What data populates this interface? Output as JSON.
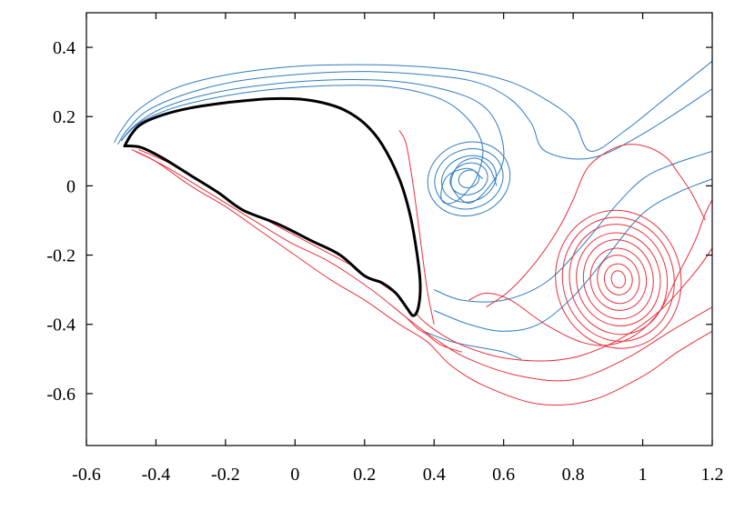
{
  "chart_data": {
    "type": "line",
    "title": "",
    "xlabel": "",
    "ylabel": "",
    "xlim": [
      -0.6,
      1.2
    ],
    "ylim": [
      -0.75,
      0.5
    ],
    "x_ticks": [
      "-0.6",
      "-0.4",
      "-0.2",
      "0",
      "0.2",
      "0.4",
      "0.6",
      "0.8",
      "1",
      "1.2"
    ],
    "y_ticks": [
      "0.4",
      "0.2",
      "0",
      "-0.2",
      "-0.4",
      "-0.6"
    ],
    "x_tick_values": [
      -0.6,
      -0.4,
      -0.2,
      0,
      0.2,
      0.4,
      0.6,
      0.8,
      1.0,
      1.2
    ],
    "y_tick_values": [
      0.4,
      0.2,
      0,
      -0.2,
      -0.4,
      -0.6
    ],
    "grid": false,
    "legend": "none",
    "colors": {
      "body": "#000000",
      "negative_vorticity": "#2f7bbf",
      "positive_vorticity": "#e8303a"
    },
    "series": [
      {
        "role": "body",
        "color": "#000000",
        "x": [
          -0.49,
          -0.47,
          -0.44,
          -0.38,
          -0.3,
          -0.2,
          -0.1,
          -0.04,
          0.02,
          0.08,
          0.14,
          0.2,
          0.25,
          0.3,
          0.33,
          0.35,
          0.36,
          0.355,
          0.34,
          0.32,
          0.29,
          0.25,
          0.2,
          0.13,
          0.05,
          -0.05,
          -0.15,
          -0.22,
          -0.3,
          -0.38,
          -0.44,
          -0.47,
          -0.49
        ],
        "y": [
          0.115,
          0.15,
          0.18,
          0.205,
          0.225,
          0.24,
          0.25,
          0.252,
          0.25,
          0.24,
          0.22,
          0.18,
          0.12,
          0.02,
          -0.08,
          -0.19,
          -0.28,
          -0.35,
          -0.375,
          -0.35,
          -0.31,
          -0.28,
          -0.26,
          -0.2,
          -0.16,
          -0.11,
          -0.07,
          -0.02,
          0.03,
          0.08,
          0.11,
          0.115,
          0.115
        ]
      }
    ],
    "contours_negative": [
      {
        "x": [
          -0.52,
          -0.5,
          -0.45,
          -0.35,
          -0.2,
          0.0,
          0.2,
          0.35,
          0.5,
          0.62,
          0.72,
          0.8,
          0.85,
          0.95,
          1.05,
          1.2
        ],
        "y": [
          0.125,
          0.16,
          0.22,
          0.28,
          0.32,
          0.345,
          0.35,
          0.345,
          0.33,
          0.3,
          0.25,
          0.19,
          0.1,
          0.16,
          0.24,
          0.36
        ]
      },
      {
        "x": [
          -0.51,
          -0.48,
          -0.42,
          -0.3,
          -0.15,
          0.05,
          0.22,
          0.38,
          0.52,
          0.62,
          0.68,
          0.72,
          0.85,
          1.0,
          1.2
        ],
        "y": [
          0.12,
          0.165,
          0.22,
          0.27,
          0.305,
          0.325,
          0.33,
          0.32,
          0.3,
          0.25,
          0.18,
          0.1,
          0.08,
          0.15,
          0.28
        ]
      },
      {
        "x": [
          -0.5,
          -0.46,
          -0.38,
          -0.25,
          -0.1,
          0.08,
          0.25,
          0.4,
          0.52,
          0.58,
          0.6,
          0.56,
          0.5,
          0.45,
          0.47,
          0.52,
          0.56,
          0.58
        ],
        "y": [
          0.13,
          0.175,
          0.225,
          0.265,
          0.29,
          0.305,
          0.305,
          0.285,
          0.245,
          0.18,
          0.08,
          0.0,
          -0.05,
          0.0,
          0.06,
          0.08,
          0.05,
          0.0
        ]
      },
      {
        "x": [
          -0.5,
          -0.45,
          -0.35,
          -0.2,
          -0.05,
          0.12,
          0.28,
          0.42,
          0.5,
          0.54,
          0.52,
          0.47,
          0.43,
          0.42,
          0.44,
          0.5,
          0.54
        ],
        "y": [
          0.13,
          0.18,
          0.225,
          0.26,
          0.28,
          0.29,
          0.285,
          0.25,
          0.19,
          0.11,
          0.02,
          -0.04,
          -0.05,
          -0.02,
          0.03,
          0.05,
          0.02
        ]
      },
      {
        "x": [
          0.4,
          0.48,
          0.6,
          0.72,
          0.82,
          0.92,
          1.0,
          1.08,
          1.2
        ],
        "y": [
          -0.3,
          -0.33,
          -0.33,
          -0.28,
          -0.18,
          -0.06,
          0.02,
          0.06,
          0.1
        ]
      },
      {
        "x": [
          0.4,
          0.5,
          0.6,
          0.7,
          0.8,
          0.9,
          1.0,
          1.1,
          1.2
        ],
        "y": [
          -0.36,
          -0.4,
          -0.42,
          -0.4,
          -0.32,
          -0.2,
          -0.08,
          -0.02,
          0.02
        ]
      },
      {
        "x": [
          0.37,
          0.45,
          0.55,
          0.6,
          0.65
        ],
        "y": [
          -0.42,
          -0.45,
          -0.47,
          -0.48,
          -0.5
        ]
      }
    ],
    "contours_positive": [
      {
        "x": [
          -0.47,
          -0.4,
          -0.3,
          -0.2,
          -0.1,
          0.0,
          0.1,
          0.2,
          0.3,
          0.38,
          0.45,
          0.55,
          0.7,
          0.85,
          1.0,
          1.1,
          1.2
        ],
        "y": [
          0.105,
          0.07,
          0.0,
          -0.06,
          -0.13,
          -0.2,
          -0.27,
          -0.33,
          -0.4,
          -0.45,
          -0.52,
          -0.58,
          -0.63,
          -0.62,
          -0.55,
          -0.48,
          -0.42
        ]
      },
      {
        "x": [
          -0.46,
          -0.38,
          -0.28,
          -0.15,
          -0.02,
          0.1,
          0.22,
          0.32,
          0.4,
          0.5,
          0.65,
          0.8,
          0.95,
          1.08,
          1.2
        ],
        "y": [
          0.1,
          0.06,
          0.0,
          -0.08,
          -0.16,
          -0.22,
          -0.3,
          -0.38,
          -0.44,
          -0.5,
          -0.55,
          -0.56,
          -0.5,
          -0.42,
          -0.35
        ]
      },
      {
        "x": [
          -0.45,
          -0.35,
          -0.22,
          -0.08,
          0.05,
          0.18,
          0.3,
          0.38,
          0.48,
          0.62,
          0.78,
          0.92,
          1.05,
          1.15,
          1.2
        ],
        "y": [
          0.105,
          0.06,
          -0.02,
          -0.1,
          -0.17,
          -0.24,
          -0.32,
          -0.4,
          -0.46,
          -0.5,
          -0.5,
          -0.45,
          -0.36,
          -0.25,
          -0.18
        ]
      },
      {
        "x": [
          0.5,
          0.55,
          0.62,
          0.72,
          0.82,
          0.9,
          0.98,
          1.05,
          1.1,
          1.15,
          1.18,
          1.2
        ],
        "y": [
          -0.33,
          -0.31,
          -0.33,
          -0.4,
          -0.45,
          -0.46,
          -0.43,
          -0.36,
          -0.26,
          -0.16,
          -0.08,
          -0.04
        ]
      },
      {
        "x": [
          0.55,
          0.62,
          0.7,
          0.76,
          0.8,
          0.84,
          0.9,
          0.96,
          1.02,
          1.07,
          1.1,
          1.14,
          1.18
        ],
        "y": [
          -0.35,
          -0.3,
          -0.21,
          -0.12,
          -0.04,
          0.05,
          0.1,
          0.12,
          0.11,
          0.08,
          0.04,
          -0.02,
          -0.1
        ]
      },
      {
        "x": [
          0.3,
          0.32,
          0.34,
          0.36,
          0.38,
          0.4
        ],
        "y": [
          0.16,
          0.12,
          0.0,
          -0.15,
          -0.3,
          -0.4
        ]
      },
      {
        "x": [
          0.32,
          0.35,
          0.38,
          0.42,
          0.48
        ],
        "y": [
          -0.38,
          -0.41,
          -0.43,
          -0.46,
          -0.48
        ]
      }
    ],
    "vortex_centers": [
      {
        "role": "negative",
        "x": 0.5,
        "y": 0.02,
        "rx": [
          0.03,
          0.055,
          0.08,
          0.1,
          0.12
        ],
        "ry": [
          0.025,
          0.045,
          0.065,
          0.085,
          0.105
        ]
      },
      {
        "role": "positive",
        "x": 0.93,
        "y": -0.27,
        "rx": [
          0.02,
          0.04,
          0.06,
          0.08,
          0.1,
          0.12,
          0.14,
          0.16,
          0.18
        ],
        "ry": [
          0.025,
          0.045,
          0.07,
          0.09,
          0.115,
          0.135,
          0.16,
          0.18,
          0.2
        ]
      }
    ]
  }
}
